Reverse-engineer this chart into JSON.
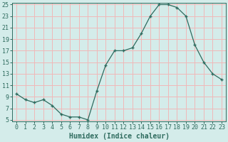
{
  "x": [
    0,
    1,
    2,
    3,
    4,
    5,
    6,
    7,
    8,
    9,
    10,
    11,
    12,
    13,
    14,
    15,
    16,
    17,
    18,
    19,
    20,
    21,
    22,
    23
  ],
  "y": [
    9.5,
    8.5,
    8.0,
    8.5,
    7.5,
    6.0,
    5.5,
    5.5,
    5.0,
    10.0,
    14.5,
    17.0,
    17.0,
    17.5,
    20.0,
    23.0,
    25.0,
    25.0,
    24.5,
    23.0,
    18.0,
    15.0,
    13.0,
    12.0
  ],
  "line_color": "#2e6b5e",
  "marker": "+",
  "marker_size": 3,
  "background_color": "#d4ecea",
  "grid_color": "#f0b8b8",
  "xlabel": "Humidex (Indice chaleur)",
  "xlabel_fontsize": 7,
  "tick_fontsize": 6,
  "ylim": [
    5,
    25
  ],
  "xlim": [
    -0.5,
    23.5
  ],
  "yticks": [
    5,
    7,
    9,
    11,
    13,
    15,
    17,
    19,
    21,
    23,
    25
  ],
  "xticks": [
    0,
    1,
    2,
    3,
    4,
    5,
    6,
    7,
    8,
    9,
    10,
    11,
    12,
    13,
    14,
    15,
    16,
    17,
    18,
    19,
    20,
    21,
    22,
    23
  ]
}
